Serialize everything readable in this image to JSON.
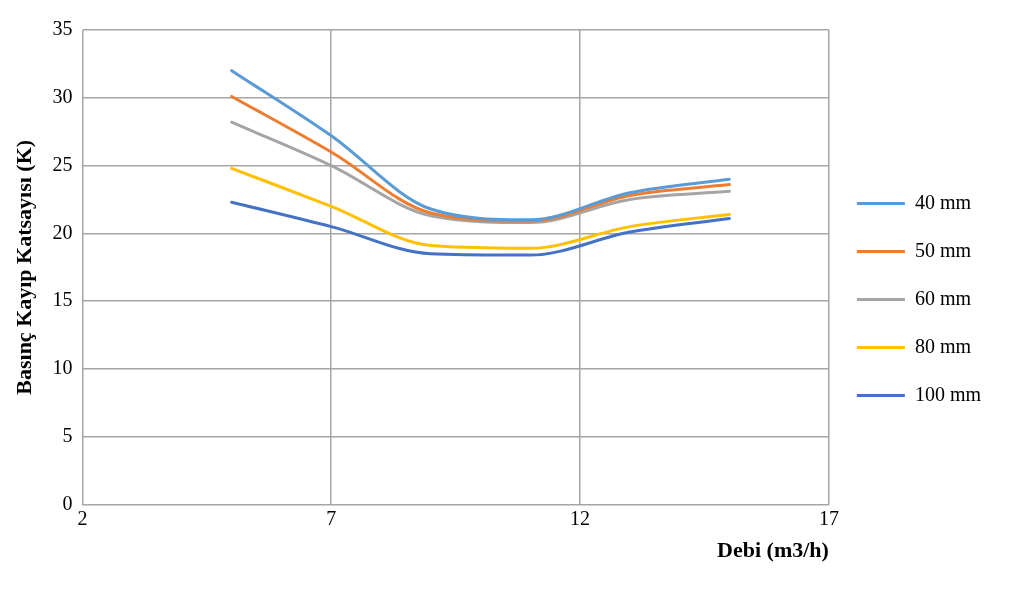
{
  "chart_data": {
    "type": "line",
    "xlabel": "Debi (m3/h)",
    "ylabel": "Basınç Kayıp Katsayısı (K)",
    "x": [
      5,
      7,
      9,
      11,
      13,
      15
    ],
    "xlim": [
      2,
      17
    ],
    "xticks": [
      2,
      7,
      12,
      17
    ],
    "ylim": [
      0,
      35
    ],
    "yticks": [
      0,
      5,
      10,
      15,
      20,
      25,
      30,
      35
    ],
    "grid": true,
    "legend": "right",
    "marker": "none",
    "line_style": "solid",
    "series": [
      {
        "name": "40 mm",
        "color": "#5b9bd5",
        "values": [
          32.0,
          27.2,
          21.8,
          21.0,
          23.0,
          24.0
        ]
      },
      {
        "name": "50 mm",
        "color": "#ed7d31",
        "values": [
          30.1,
          26.0,
          21.5,
          20.9,
          22.8,
          23.6
        ]
      },
      {
        "name": "60 mm",
        "color": "#a5a5a5",
        "values": [
          28.2,
          25.0,
          21.3,
          20.8,
          22.5,
          23.1
        ]
      },
      {
        "name": "80 mm",
        "color": "#ffc000",
        "values": [
          24.8,
          22.0,
          19.1,
          18.9,
          20.5,
          21.4
        ]
      },
      {
        "name": "100 mm",
        "color": "#4472c4",
        "values": [
          22.3,
          20.5,
          18.5,
          18.4,
          20.1,
          21.1
        ]
      }
    ]
  }
}
